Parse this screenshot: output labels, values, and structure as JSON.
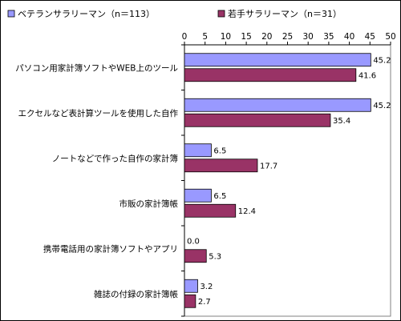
{
  "chart_data": {
    "type": "bar",
    "orientation": "horizontal",
    "categories": [
      "パソコン用家計簿ソフトやWEB上のツール",
      "エクセルなど表計算ツールを使用した自作",
      "ノートなどで作った自作の家計簿",
      "市販の家計簿帳",
      "携帯電話用の家計簿ソフトやアプリ",
      "雑誌の付録の家計簿帳"
    ],
    "series": [
      {
        "name": "ベテランサラリーマン（n＝113）",
        "values": [
          45.2,
          45.2,
          6.5,
          6.5,
          0.0,
          3.2
        ],
        "color": "#9999ff"
      },
      {
        "name": "若手サラリーマン（n＝31）",
        "values": [
          41.6,
          35.4,
          17.7,
          12.4,
          5.3,
          2.7
        ],
        "color": "#993366"
      }
    ],
    "xlim": [
      0,
      50
    ],
    "xticks": [
      0,
      5,
      10,
      15,
      20,
      25,
      30,
      35,
      40,
      45,
      50
    ],
    "grid": false,
    "legend_position": "top",
    "data_labels": true
  }
}
